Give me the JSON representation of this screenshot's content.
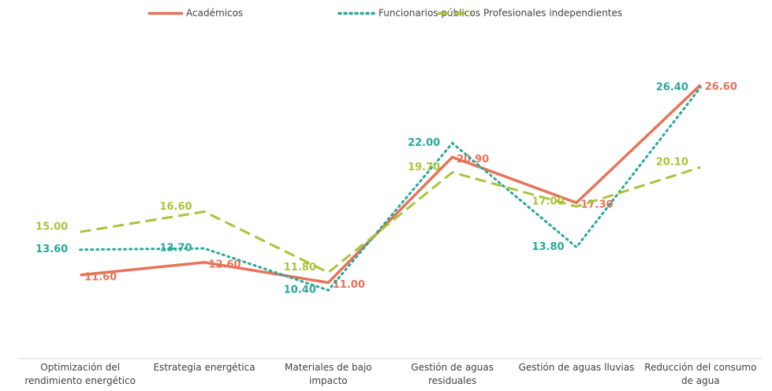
{
  "chart_data": {
    "type": "line",
    "categories": [
      "Optimización del rendimiento energético",
      "Estrategia energética",
      "Materiales de bajo impacto",
      "Gestión de aguas residuales",
      "Gestión de aguas lluvias",
      "Reducción del consumo de agua"
    ],
    "series": [
      {
        "name": "Académicos",
        "color": "#e8735a",
        "style": "solid",
        "values": [
          11.6,
          12.6,
          11.0,
          20.9,
          17.3,
          26.6
        ],
        "value_labels": [
          "11.60",
          "12.60",
          "11.00",
          "20.90",
          "17.30",
          "26.60"
        ]
      },
      {
        "name": "Funcionarios públicos",
        "color": "#2aa89a",
        "style": "dotted",
        "values": [
          13.6,
          13.7,
          10.4,
          22.0,
          13.8,
          26.4
        ],
        "value_labels": [
          "13.60",
          "13.70",
          "10.40",
          "22.00",
          "13.80",
          "26.40"
        ]
      },
      {
        "name": "Profesionales independientes",
        "color": "#a8c53a",
        "style": "dashed",
        "values": [
          15.0,
          16.6,
          11.8,
          19.7,
          17.0,
          20.1
        ],
        "value_labels": [
          "15.00",
          "16.60",
          "11.80",
          "19.70",
          "17.00",
          "20.10"
        ]
      }
    ],
    "ylim": [
      5,
      30
    ],
    "legend": "top"
  }
}
